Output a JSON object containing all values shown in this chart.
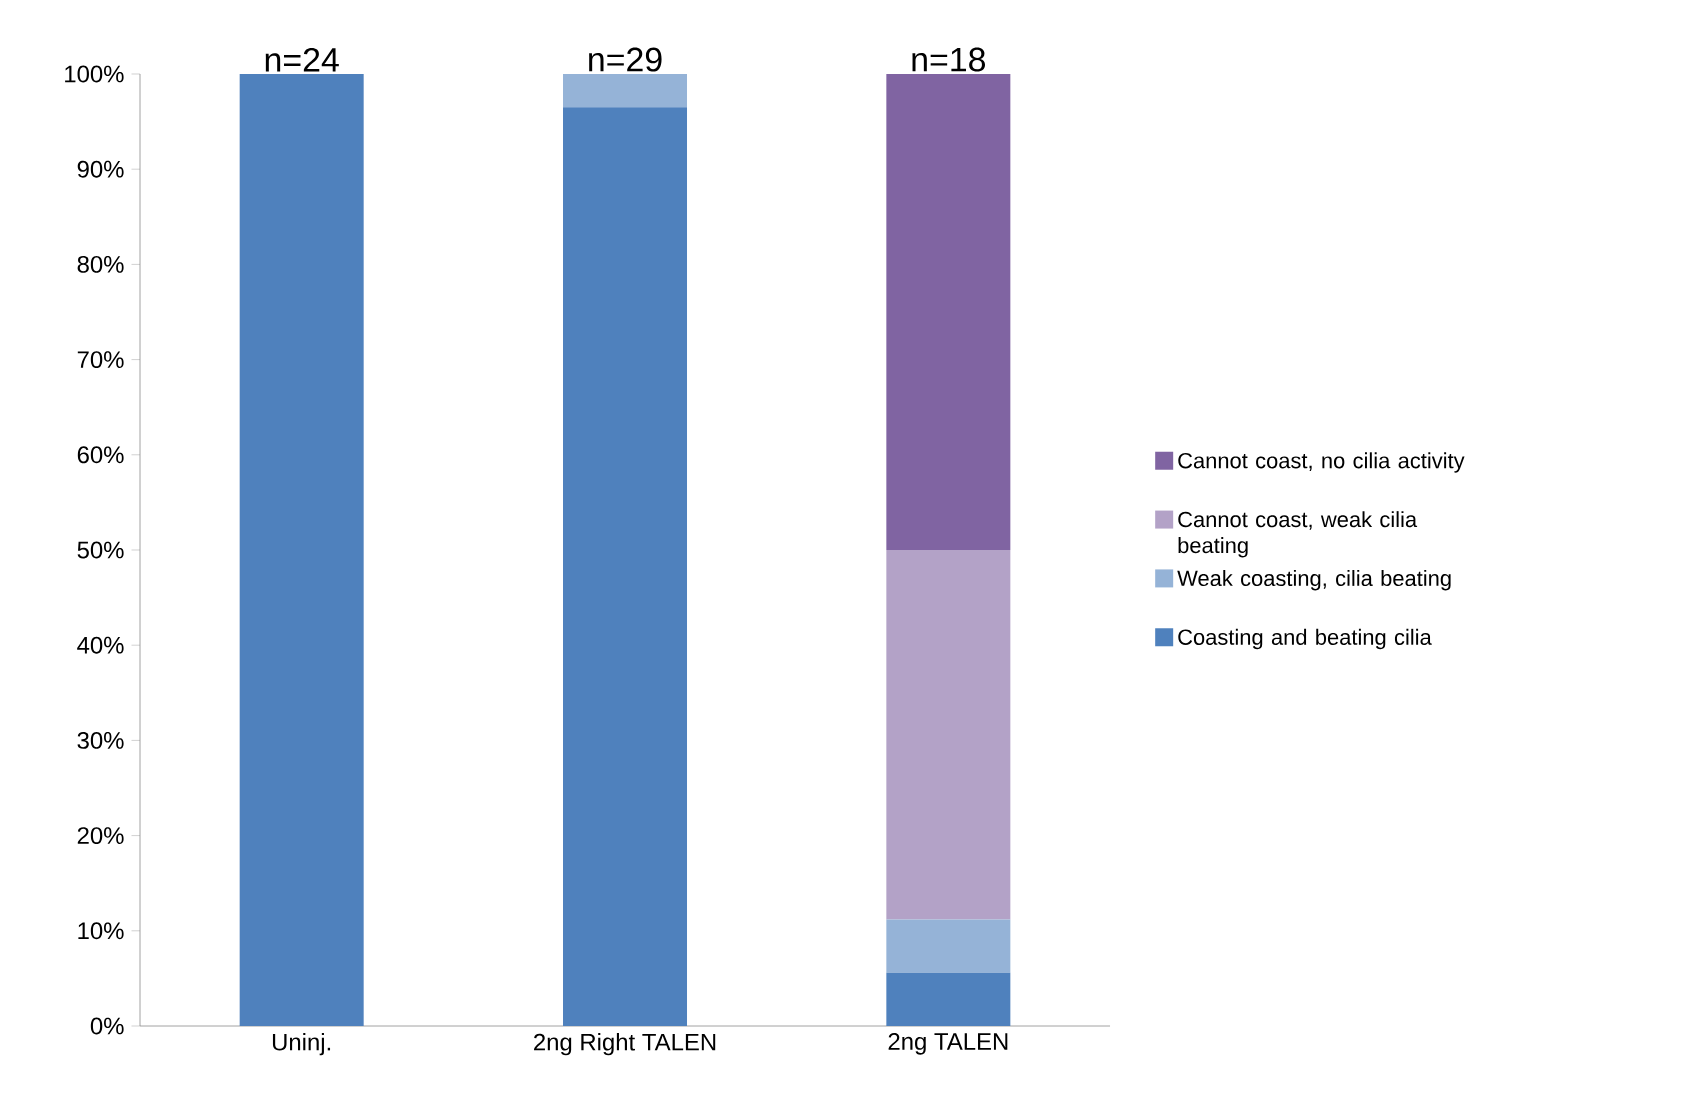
{
  "chart_data": {
    "type": "bar",
    "stacked": true,
    "categories": [
      "Uninj.",
      "2ng Right TALEN",
      "2ng TALEN"
    ],
    "series": [
      {
        "name": "Coasting and beating cilia",
        "color": "#4f81bd",
        "values": [
          100,
          96.5,
          5.6
        ]
      },
      {
        "name": "Weak coasting, cilia beating",
        "color": "#95b3d7",
        "values": [
          0,
          3.5,
          5.6
        ]
      },
      {
        "name": "Cannot coast, weak cilia beating",
        "color": "#b3a2c7",
        "values": [
          0,
          0,
          38.8
        ]
      },
      {
        "name": "Cannot coast, no cilia activity",
        "color": "#8064a2",
        "values": [
          0,
          0,
          50
        ]
      }
    ],
    "ylim": [
      0,
      100
    ],
    "yticks": [
      {
        "value": 0,
        "label": "0%"
      },
      {
        "value": 10,
        "label": "10%"
      },
      {
        "value": 20,
        "label": "20%"
      },
      {
        "value": 30,
        "label": "30%"
      },
      {
        "value": 40,
        "label": "40%"
      },
      {
        "value": 50,
        "label": "50%"
      },
      {
        "value": 60,
        "label": "60%"
      },
      {
        "value": 70,
        "label": "70%"
      },
      {
        "value": 80,
        "label": "80%"
      },
      {
        "value": 90,
        "label": "90%"
      },
      {
        "value": 100,
        "label": "100%"
      }
    ],
    "annotations": [
      {
        "text": "n=24",
        "x": "Uninj.",
        "y": 100
      },
      {
        "text": "n=29",
        "x": "2ng Right TALEN",
        "y": 100
      },
      {
        "text": "n=18",
        "x": "2ng TALEN",
        "y": 100
      }
    ],
    "grid": false,
    "legend": "right"
  }
}
